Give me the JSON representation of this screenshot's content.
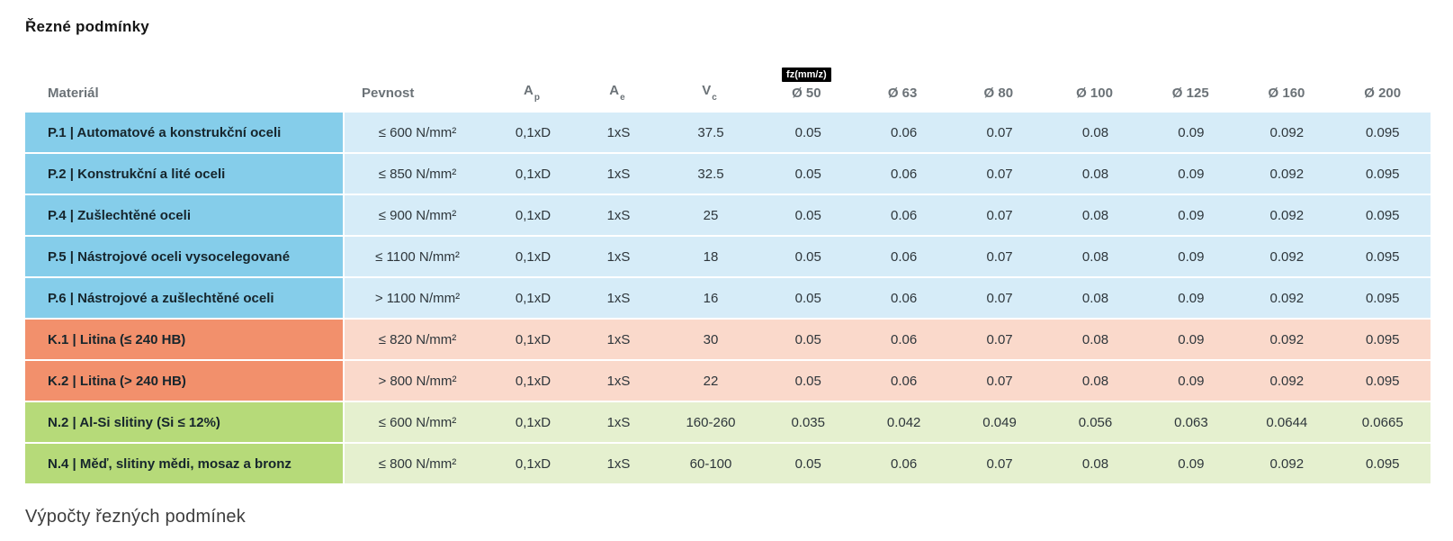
{
  "page": {
    "title": "Řezné podmínky",
    "footer_heading": "Výpočty řezných podmínek"
  },
  "table": {
    "headers": {
      "material": "Materiál",
      "pevnost": "Pevnost",
      "ap": {
        "base": "A",
        "sub": "p"
      },
      "ae": {
        "base": "A",
        "sub": "e"
      },
      "vc": {
        "base": "V",
        "sub": "c"
      },
      "fz_badge": "fz(mm/z)",
      "diameters": [
        "Ø 50",
        "Ø 63",
        "Ø 80",
        "Ø 100",
        "Ø 125",
        "Ø 160",
        "Ø 200"
      ]
    },
    "rows": [
      {
        "group": "steel",
        "material": "P.1 | Automatové a konstrukční oceli",
        "pevnost": "≤ 600 N/mm²",
        "ap": "0,1xD",
        "ae": "1xS",
        "vc": "37.5",
        "fz": [
          "0.05",
          "0.06",
          "0.07",
          "0.08",
          "0.09",
          "0.092",
          "0.095"
        ]
      },
      {
        "group": "steel",
        "material": "P.2 | Konstrukční a lité oceli",
        "pevnost": "≤ 850 N/mm²",
        "ap": "0,1xD",
        "ae": "1xS",
        "vc": "32.5",
        "fz": [
          "0.05",
          "0.06",
          "0.07",
          "0.08",
          "0.09",
          "0.092",
          "0.095"
        ]
      },
      {
        "group": "steel",
        "material": "P.4 | Zušlechtěné oceli",
        "pevnost": "≤ 900 N/mm²",
        "ap": "0,1xD",
        "ae": "1xS",
        "vc": "25",
        "fz": [
          "0.05",
          "0.06",
          "0.07",
          "0.08",
          "0.09",
          "0.092",
          "0.095"
        ]
      },
      {
        "group": "steel",
        "material": "P.5 | Nástrojové oceli vysocelegované",
        "pevnost": "≤ 1100 N/mm²",
        "ap": "0,1xD",
        "ae": "1xS",
        "vc": "18",
        "fz": [
          "0.05",
          "0.06",
          "0.07",
          "0.08",
          "0.09",
          "0.092",
          "0.095"
        ]
      },
      {
        "group": "steel",
        "material": "P.6 | Nástrojové a zušlechtěné oceli",
        "pevnost": "> 1100 N/mm²",
        "ap": "0,1xD",
        "ae": "1xS",
        "vc": "16",
        "fz": [
          "0.05",
          "0.06",
          "0.07",
          "0.08",
          "0.09",
          "0.092",
          "0.095"
        ]
      },
      {
        "group": "cast",
        "material": "K.1 | Litina (≤ 240 HB)",
        "pevnost": "≤ 820 N/mm²",
        "ap": "0,1xD",
        "ae": "1xS",
        "vc": "30",
        "fz": [
          "0.05",
          "0.06",
          "0.07",
          "0.08",
          "0.09",
          "0.092",
          "0.095"
        ]
      },
      {
        "group": "cast",
        "material": "K.2 | Litina (> 240 HB)",
        "pevnost": "> 800 N/mm²",
        "ap": "0,1xD",
        "ae": "1xS",
        "vc": "22",
        "fz": [
          "0.05",
          "0.06",
          "0.07",
          "0.08",
          "0.09",
          "0.092",
          "0.095"
        ]
      },
      {
        "group": "nonferrous",
        "material": "N.2 | Al-Si slitiny (Si ≤ 12%)",
        "pevnost": "≤ 600 N/mm²",
        "ap": "0,1xD",
        "ae": "1xS",
        "vc": "160-260",
        "fz": [
          "0.035",
          "0.042",
          "0.049",
          "0.056",
          "0.063",
          "0.0644",
          "0.0665"
        ]
      },
      {
        "group": "nonferrous",
        "material": "N.4 | Měď, slitiny mědi, mosaz a bronz",
        "pevnost": "≤ 800 N/mm²",
        "ap": "0,1xD",
        "ae": "1xS",
        "vc": "60-100",
        "fz": [
          "0.05",
          "0.06",
          "0.07",
          "0.08",
          "0.09",
          "0.092",
          "0.095"
        ]
      }
    ],
    "colors": {
      "steel_label": "#85CDEA",
      "steel_row": "#D6ECF8",
      "cast_label": "#F2906C",
      "cast_row": "#FAD9CB",
      "nonferrous_label": "#B6DA79",
      "nonferrous_row": "#E5F0CF",
      "badge_bg": "#000000",
      "badge_text": "#FFFFFF"
    }
  }
}
